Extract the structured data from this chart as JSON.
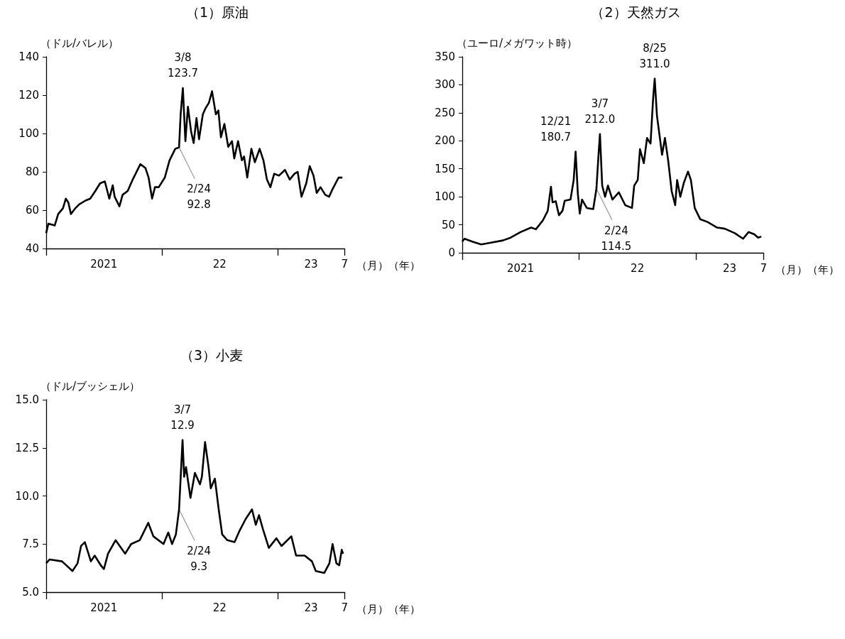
{
  "chart_data": [
    {
      "type": "line",
      "title": "（1）原油",
      "ylabel": "（ドル/バレル）",
      "xlabel": "（月）（年）",
      "marker": "none",
      "xlim": [
        "2021-01-01",
        "2023-07-31"
      ],
      "ylim": [
        40,
        140
      ],
      "yticks": [
        40,
        60,
        80,
        100,
        120,
        140
      ],
      "xticks": [
        {
          "value": "2021-01-01",
          "label": null
        },
        {
          "value": "2022-01-01",
          "label": null
        },
        {
          "value": "2023-01-01",
          "label": null
        },
        {
          "value": "2023-07-31",
          "label": "7"
        },
        {
          "value": "2021-07-02",
          "label": "2021"
        },
        {
          "value": "2022-07-02",
          "label": "22"
        },
        {
          "value": "2023-04-16",
          "label": "23"
        }
      ],
      "annotations": [
        {
          "text": "3/8\n123.7",
          "x": "2022-03-08",
          "y": 123.7
        },
        {
          "text": "2/24\n92.8",
          "x": "2022-02-24",
          "y": 92.8
        }
      ],
      "x": [
        "2021-01-01",
        "2021-01-08",
        "2021-01-28",
        "2021-02-08",
        "2021-02-23",
        "2021-03-04",
        "2021-03-12",
        "2021-03-20",
        "2021-04-03",
        "2021-04-15",
        "2021-05-05",
        "2021-05-20",
        "2021-06-05",
        "2021-06-20",
        "2021-07-05",
        "2021-07-19",
        "2021-07-30",
        "2021-08-05",
        "2021-08-20",
        "2021-08-30",
        "2021-09-15",
        "2021-10-01",
        "2021-10-25",
        "2021-11-10",
        "2021-11-20",
        "2021-12-01",
        "2021-12-10",
        "2021-12-22",
        "2022-01-10",
        "2022-01-25",
        "2022-02-12",
        "2022-02-24",
        "2022-03-01",
        "2022-03-08",
        "2022-03-16",
        "2022-03-24",
        "2022-04-03",
        "2022-04-11",
        "2022-04-20",
        "2022-04-28",
        "2022-05-10",
        "2022-05-18",
        "2022-05-29",
        "2022-06-08",
        "2022-06-20",
        "2022-06-28",
        "2022-07-06",
        "2022-07-17",
        "2022-07-29",
        "2022-08-10",
        "2022-08-17",
        "2022-08-29",
        "2022-09-10",
        "2022-09-17",
        "2022-09-27",
        "2022-10-10",
        "2022-10-21",
        "2022-11-05",
        "2022-11-17",
        "2022-11-28",
        "2022-12-09",
        "2022-12-21",
        "2023-01-05",
        "2023-01-24",
        "2023-02-08",
        "2023-02-23",
        "2023-03-05",
        "2023-03-17",
        "2023-04-01",
        "2023-04-12",
        "2023-04-24",
        "2023-05-04",
        "2023-05-16",
        "2023-05-31",
        "2023-06-12",
        "2023-06-23",
        "2023-07-12",
        "2023-07-24"
      ],
      "series": [
        {
          "color": "#000000",
          "values": [
            48,
            53,
            52,
            58,
            61,
            66,
            64,
            58,
            61,
            63,
            65,
            66,
            70,
            74,
            75,
            66,
            73,
            67,
            62,
            68,
            70,
            76,
            84,
            82,
            77,
            66,
            72,
            72,
            77,
            86,
            92,
            92.8,
            110,
            123.7,
            96,
            114,
            101,
            95,
            108,
            97,
            110,
            113,
            116,
            122,
            110,
            112,
            98,
            105,
            93,
            96,
            87,
            96,
            86,
            88,
            77,
            92,
            85,
            92,
            86,
            76,
            72,
            79,
            78,
            81,
            76,
            79,
            80,
            67,
            74,
            83,
            78,
            69,
            72,
            68,
            67,
            71,
            77,
            77
          ]
        }
      ]
    },
    {
      "type": "line",
      "title": "（2）天然ガス",
      "ylabel": "（ユーロ/メガワット時）",
      "xlabel": "（月）（年）",
      "marker": "none",
      "xlim": [
        "2021-01-01",
        "2023-07-31"
      ],
      "ylim": [
        0,
        350
      ],
      "yticks": [
        0,
        50,
        100,
        150,
        200,
        250,
        300,
        350
      ],
      "xticks": [
        {
          "value": "2021-01-01",
          "label": null
        },
        {
          "value": "2022-01-01",
          "label": null
        },
        {
          "value": "2023-01-01",
          "label": null
        },
        {
          "value": "2023-07-31",
          "label": "7"
        },
        {
          "value": "2021-07-02",
          "label": "2021"
        },
        {
          "value": "2022-07-02",
          "label": "22"
        },
        {
          "value": "2023-04-16",
          "label": "23"
        }
      ],
      "annotations": [
        {
          "text": "12/21\n180.7",
          "x": "2021-12-21",
          "y": 180.7
        },
        {
          "text": "3/7\n212.0",
          "x": "2022-03-07",
          "y": 212.0
        },
        {
          "text": "8/25\n311.0",
          "x": "2022-08-25",
          "y": 311.0
        },
        {
          "text": "2/24\n114.5",
          "x": "2022-02-24",
          "y": 114.5
        }
      ],
      "x": [
        "2021-01-01",
        "2021-01-08",
        "2021-02-01",
        "2021-03-01",
        "2021-04-01",
        "2021-05-08",
        "2021-06-01",
        "2021-07-02",
        "2021-08-04",
        "2021-08-19",
        "2021-09-10",
        "2021-09-25",
        "2021-10-05",
        "2021-10-10",
        "2021-10-20",
        "2021-10-30",
        "2021-11-10",
        "2021-11-17",
        "2021-12-05",
        "2021-12-15",
        "2021-12-21",
        "2021-12-28",
        "2022-01-03",
        "2022-01-10",
        "2022-01-25",
        "2022-02-14",
        "2022-02-24",
        "2022-03-02",
        "2022-03-07",
        "2022-03-14",
        "2022-03-23",
        "2022-04-01",
        "2022-04-15",
        "2022-05-05",
        "2022-05-25",
        "2022-06-15",
        "2022-06-22",
        "2022-07-03",
        "2022-07-10",
        "2022-07-22",
        "2022-08-01",
        "2022-08-12",
        "2022-08-20",
        "2022-08-25",
        "2022-09-01",
        "2022-09-09",
        "2022-09-17",
        "2022-09-26",
        "2022-10-06",
        "2022-10-17",
        "2022-10-28",
        "2022-11-03",
        "2022-11-13",
        "2022-11-24",
        "2022-12-07",
        "2022-12-16",
        "2022-12-28",
        "2023-01-14",
        "2023-02-06",
        "2023-03-08",
        "2023-04-01",
        "2023-05-02",
        "2023-05-28",
        "2023-06-14",
        "2023-07-02",
        "2023-07-14",
        "2023-07-24"
      ],
      "series": [
        {
          "color": "#000000",
          "values": [
            20,
            25,
            20,
            15,
            18,
            22,
            27,
            37,
            45,
            42,
            58,
            75,
            118,
            90,
            92,
            67,
            75,
            93,
            95,
            130,
            180.7,
            105,
            70,
            95,
            80,
            78,
            114.5,
            170,
            212.0,
            120,
            100,
            120,
            95,
            108,
            85,
            80,
            120,
            130,
            185,
            160,
            205,
            195,
            275,
            311.0,
            245,
            210,
            175,
            205,
            165,
            110,
            85,
            130,
            100,
            125,
            145,
            130,
            80,
            60,
            55,
            45,
            43,
            35,
            25,
            37,
            33,
            27,
            29
          ]
        }
      ]
    },
    {
      "type": "line",
      "title": "（3）小麦",
      "ylabel": "（ドル/ブッシェル）",
      "xlabel": "（月）（年）",
      "marker": "none",
      "xlim": [
        "2021-01-01",
        "2023-07-31"
      ],
      "ylim": [
        5,
        15
      ],
      "yticks": [
        {
          "value": 5,
          "label": "5.0"
        },
        {
          "value": 7.5,
          "label": "7.5"
        },
        {
          "value": 10,
          "label": "10.0"
        },
        {
          "value": 12.5,
          "label": "12.5"
        },
        {
          "value": 15,
          "label": "15.0"
        }
      ],
      "xticks": [
        {
          "value": "2021-01-01",
          "label": null
        },
        {
          "value": "2022-01-01",
          "label": null
        },
        {
          "value": "2023-01-01",
          "label": null
        },
        {
          "value": "2023-07-31",
          "label": "7"
        },
        {
          "value": "2021-07-02",
          "label": "2021"
        },
        {
          "value": "2022-07-02",
          "label": "22"
        },
        {
          "value": "2023-04-16",
          "label": "23"
        }
      ],
      "annotations": [
        {
          "text": "3/7\n12.9",
          "x": "2022-03-07",
          "y": 12.9
        },
        {
          "text": "2/24\n9.3",
          "x": "2022-02-24",
          "y": 9.3
        }
      ],
      "x": [
        "2021-01-01",
        "2021-01-12",
        "2021-02-20",
        "2021-03-25",
        "2021-04-10",
        "2021-04-21",
        "2021-05-03",
        "2021-05-22",
        "2021-06-03",
        "2021-06-22",
        "2021-07-02",
        "2021-07-15",
        "2021-08-08",
        "2021-09-07",
        "2021-09-26",
        "2021-10-23",
        "2021-11-19",
        "2021-12-05",
        "2022-01-06",
        "2022-01-21",
        "2022-02-02",
        "2022-02-14",
        "2022-02-24",
        "2022-03-07",
        "2022-03-12",
        "2022-03-18",
        "2022-04-01",
        "2022-04-15",
        "2022-05-01",
        "2022-05-07",
        "2022-05-17",
        "2022-05-28",
        "2022-06-04",
        "2022-06-17",
        "2022-06-29",
        "2022-07-10",
        "2022-07-26",
        "2022-08-18",
        "2022-09-03",
        "2022-09-22",
        "2022-10-12",
        "2022-10-24",
        "2022-11-03",
        "2022-11-15",
        "2022-12-04",
        "2022-12-28",
        "2023-01-13",
        "2023-02-13",
        "2023-02-28",
        "2023-03-27",
        "2023-04-19",
        "2023-05-01",
        "2023-05-28",
        "2023-06-13",
        "2023-06-23",
        "2023-07-05",
        "2023-07-14",
        "2023-07-22",
        "2023-07-26"
      ],
      "series": [
        {
          "color": "#000000",
          "values": [
            6.5,
            6.7,
            6.6,
            6.1,
            6.5,
            7.4,
            7.6,
            6.6,
            6.9,
            6.4,
            6.2,
            7.0,
            7.7,
            7.0,
            7.5,
            7.7,
            8.6,
            7.9,
            7.5,
            8.1,
            7.5,
            8.0,
            9.3,
            12.9,
            11.0,
            11.5,
            9.9,
            11.2,
            10.6,
            11.0,
            12.8,
            11.5,
            10.4,
            10.9,
            9.3,
            8.0,
            7.7,
            7.6,
            8.2,
            8.8,
            9.3,
            8.5,
            9.0,
            8.3,
            7.3,
            7.8,
            7.4,
            7.9,
            6.9,
            6.9,
            6.6,
            6.1,
            6.0,
            6.5,
            7.5,
            6.5,
            6.4,
            7.2,
            7.0
          ]
        }
      ]
    }
  ]
}
